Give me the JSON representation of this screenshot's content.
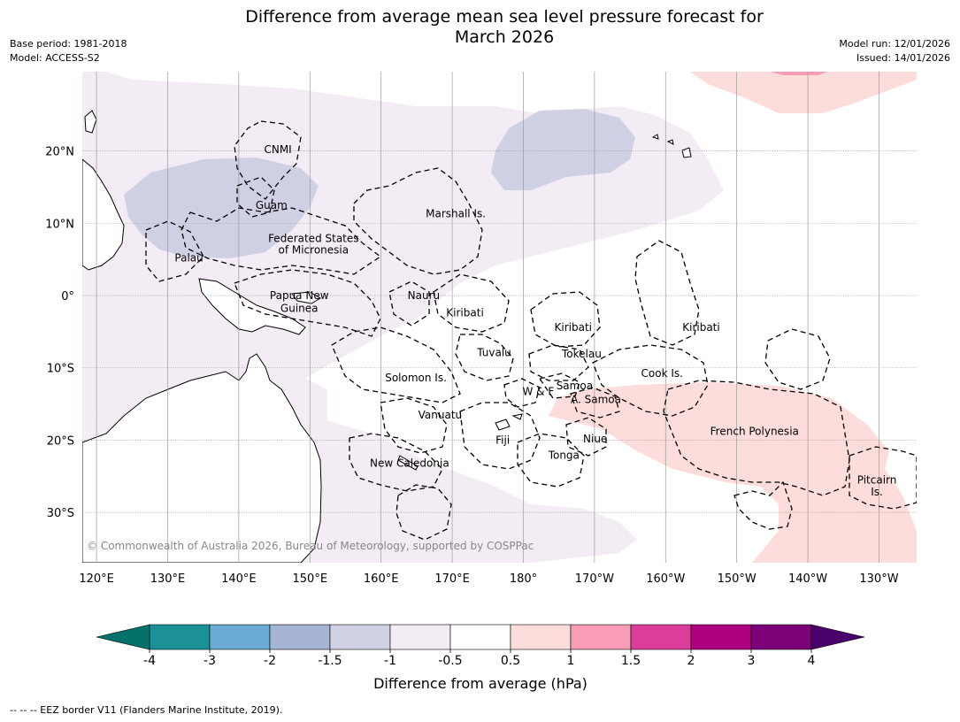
{
  "title_line1": "Difference from average mean sea level pressure forecast for",
  "title_line2": "March 2026",
  "base_period": "Base period: 1981-2018",
  "model": "Model: ACCESS-S2",
  "model_run": "Model run: 12/01/2026",
  "issued": "Issued: 14/01/2026",
  "copyright": "© Commonwealth of Australia 2026, Bureau of Meteorology, supported by COSPPac",
  "lat_ticks": [
    "20°N",
    "10°N",
    "0°",
    "10°S",
    "20°S",
    "30°S"
  ],
  "lon_ticks": [
    "120°E",
    "130°E",
    "140°E",
    "150°E",
    "160°E",
    "170°E",
    "180°",
    "170°W",
    "160°W",
    "150°W",
    "140°W",
    "130°W"
  ],
  "regions": [
    {
      "name": "CNMI",
      "lon": 145.5,
      "lat": 20.2
    },
    {
      "name": "Guam",
      "lon": 144.6,
      "lat": 12.5
    },
    {
      "name": "Marshall Is.",
      "lon": 170.5,
      "lat": 11.3
    },
    {
      "name": "Federated States",
      "lon": 150.5,
      "lat": 7.9
    },
    {
      "name": "of Micronesia",
      "lon": 150.5,
      "lat": 6.3
    },
    {
      "name": "Palau",
      "lon": 133.0,
      "lat": 5.2
    },
    {
      "name": "Papua New",
      "lon": 148.5,
      "lat": 0.0
    },
    {
      "name": "Guinea",
      "lon": 148.5,
      "lat": -1.8
    },
    {
      "name": "Nauru",
      "lon": 166.0,
      "lat": 0.0
    },
    {
      "name": "Kiribati",
      "lon": 171.8,
      "lat": -2.4
    },
    {
      "name": "Kiribati",
      "lon": -173.0,
      "lat": -4.4
    },
    {
      "name": "Kiribati",
      "lon": -155.0,
      "lat": -4.4
    },
    {
      "name": "Tuvalu",
      "lon": 175.9,
      "lat": -7.9
    },
    {
      "name": "Tokelau",
      "lon": -171.8,
      "lat": -8.1
    },
    {
      "name": "Cook Is.",
      "lon": -160.5,
      "lat": -10.8
    },
    {
      "name": "Solomon Is.",
      "lon": 164.9,
      "lat": -11.4
    },
    {
      "name": "W & F",
      "lon": -177.9,
      "lat": -13.3
    },
    {
      "name": "Samoa",
      "lon": -172.8,
      "lat": -12.5
    },
    {
      "name": "A. Samoa",
      "lon": -169.8,
      "lat": -14.4
    },
    {
      "name": "Vanuatu",
      "lon": 168.3,
      "lat": -16.5
    },
    {
      "name": "Fiji",
      "lon": 177.1,
      "lat": -20.0
    },
    {
      "name": "Niue",
      "lon": -169.9,
      "lat": -19.8
    },
    {
      "name": "Tonga",
      "lon": -174.3,
      "lat": -22.1
    },
    {
      "name": "French Polynesia",
      "lon": -147.5,
      "lat": -18.8
    },
    {
      "name": "New Caledonia",
      "lon": 164.0,
      "lat": -23.2
    },
    {
      "name": "Pitcairn",
      "lon": -130.3,
      "lat": -25.5
    },
    {
      "name": "Is.",
      "lon": -130.3,
      "lat": -27.2
    }
  ],
  "colorbar": {
    "label": "Difference from average (hPa)",
    "ticks": [
      "-4",
      "-3",
      "-2",
      "-1.5",
      "-1",
      "-0.5",
      "0.5",
      "1",
      "1.5",
      "2",
      "3",
      "4"
    ],
    "colors": [
      "#1b9096",
      "#6aabd5",
      "#a7b5d4",
      "#d0d0e5",
      "#f4ecf4",
      "#ffffff",
      "#fddcdc",
      "#f89db5",
      "#dc3d9a",
      "#ad017e",
      "#7c0077"
    ],
    "under_color": "#03736a",
    "over_color": "#49006a"
  },
  "footnote": "--  --  -- EEZ border V11 (Flanders Marine Institute, 2019).",
  "colors": {
    "neg_weak": "#f4ecf4",
    "neg_mod": "#d0d0e5",
    "pos_weak": "#fddcdc",
    "pos_mod": "#f89db5",
    "grid": "#9a9a9a"
  }
}
